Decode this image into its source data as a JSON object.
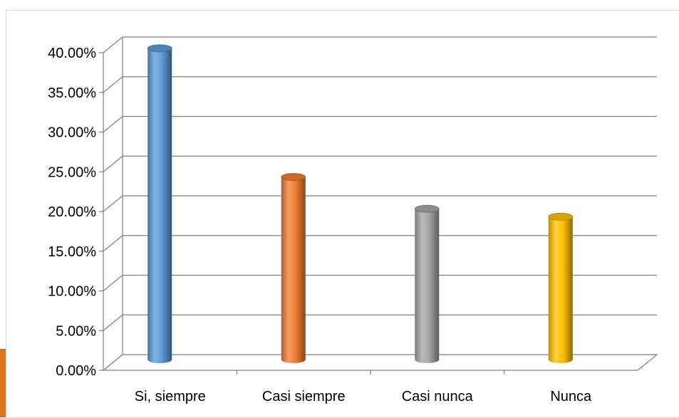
{
  "chart_data": {
    "type": "bar",
    "style": "3d-cylinder",
    "title": "",
    "xlabel": "",
    "ylabel": "",
    "categories": [
      "Si, siempre",
      "Casi siempre",
      "Casi nunca",
      "Nunca"
    ],
    "values": [
      39.2,
      23.0,
      19.0,
      18.0
    ],
    "colors": [
      "#5b9bd5",
      "#ed7d31",
      "#a5a5a5",
      "#ffc000"
    ],
    "ylim": [
      0,
      40
    ],
    "yticks": [
      0,
      5,
      10,
      15,
      20,
      25,
      30,
      35,
      40
    ],
    "ytick_labels": [
      "0.00%",
      "5.00%",
      "10.00%",
      "15.00%",
      "20.00%",
      "25.00%",
      "30.00%",
      "35.00%",
      "40.00%"
    ],
    "value_format": "percent",
    "grid": true,
    "legend": "none"
  }
}
